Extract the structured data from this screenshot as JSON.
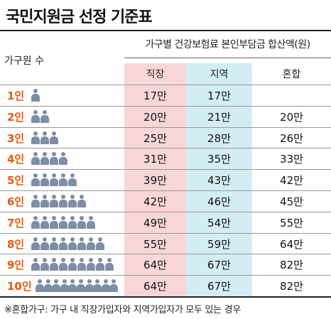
{
  "title": "국민지원금 선정 기준표",
  "header": {
    "household_label": "가구원 수",
    "group_label": "가구별 건강보험료 본인부담금 합산액(원)"
  },
  "colors": {
    "accent": "#e8580c",
    "jikjang_bg": "#f8d6d8",
    "jiyeok_bg": "#d3edf4",
    "person_icon": "#7d8ea6"
  },
  "chart_data": {
    "type": "table",
    "columns": [
      "직장",
      "지역",
      "혼합"
    ],
    "rows": [
      {
        "label": "1인",
        "people": 1,
        "values": [
          "17만",
          "17만",
          ""
        ]
      },
      {
        "label": "2인",
        "people": 2,
        "values": [
          "20만",
          "21만",
          "20만"
        ]
      },
      {
        "label": "3인",
        "people": 3,
        "values": [
          "25만",
          "28만",
          "26만"
        ]
      },
      {
        "label": "4인",
        "people": 4,
        "values": [
          "31만",
          "35만",
          "33만"
        ]
      },
      {
        "label": "5인",
        "people": 5,
        "values": [
          "39만",
          "43만",
          "42만"
        ]
      },
      {
        "label": "6인",
        "people": 6,
        "values": [
          "42만",
          "46만",
          "45만"
        ]
      },
      {
        "label": "7인",
        "people": 7,
        "values": [
          "49만",
          "54만",
          "55만"
        ]
      },
      {
        "label": "8인",
        "people": 8,
        "values": [
          "55만",
          "59만",
          "64만"
        ]
      },
      {
        "label": "9인",
        "people": 9,
        "values": [
          "64만",
          "67만",
          "82만"
        ]
      },
      {
        "label": "10인",
        "people": 10,
        "values": [
          "64만",
          "67만",
          "82만"
        ]
      }
    ]
  },
  "footnote": "※혼합가구: 가구 내 직장가입자와 지역가입자가 모두 있는 경우"
}
